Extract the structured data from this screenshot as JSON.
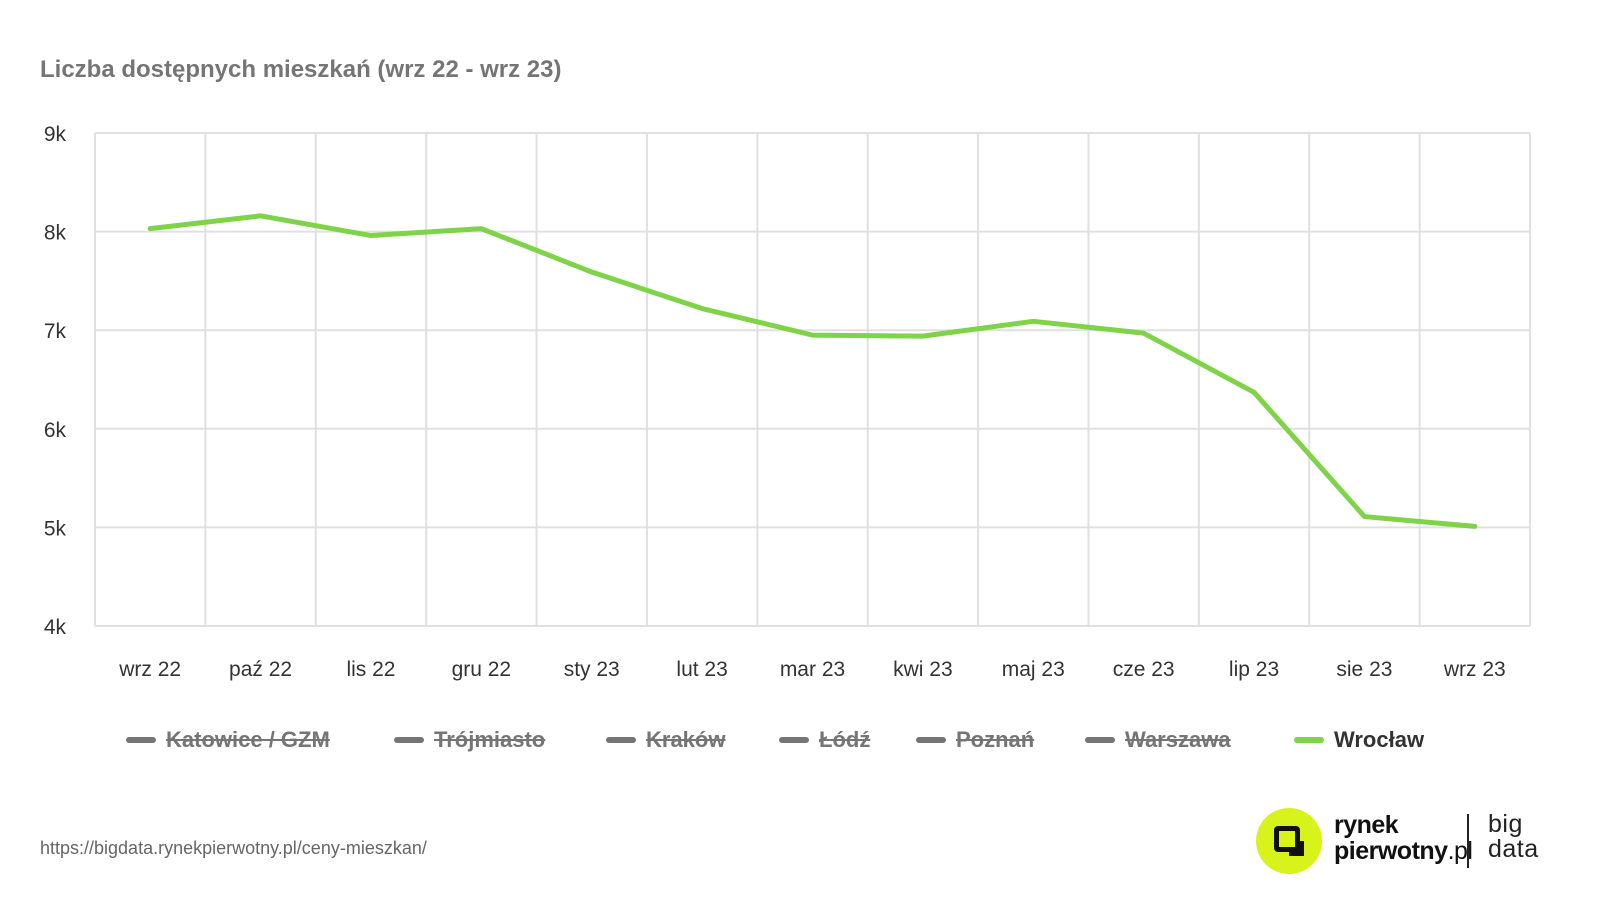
{
  "title": "Liczba dostępnych mieszkań (wrz 22 - wrz 23)",
  "chart_data": {
    "type": "line",
    "title": "Liczba dostępnych mieszkań (wrz 22 - wrz 23)",
    "categories": [
      "wrz 22",
      "paź 22",
      "lis 22",
      "gru 22",
      "sty 23",
      "lut 23",
      "mar 23",
      "kwi 23",
      "maj 23",
      "cze 23",
      "lip 23",
      "sie 23",
      "wrz 23"
    ],
    "ylim": [
      4000,
      9000
    ],
    "yticks": [
      4000,
      5000,
      6000,
      7000,
      8000,
      9000
    ],
    "ytick_labels": [
      "4k",
      "5k",
      "6k",
      "7k",
      "8k",
      "9k"
    ],
    "grid": true,
    "legend_position": "bottom",
    "series": [
      {
        "name": "Wrocław",
        "color": "#7ed348",
        "visible": true,
        "values": [
          8030,
          8160,
          7960,
          8030,
          7590,
          7220,
          6950,
          6940,
          7090,
          6970,
          6370,
          5110,
          5010
        ]
      }
    ],
    "legend": [
      {
        "name": "Katowice / GZM",
        "visible": false
      },
      {
        "name": "Trójmiasto",
        "visible": false
      },
      {
        "name": "Kraków",
        "visible": false
      },
      {
        "name": "Łódź",
        "visible": false
      },
      {
        "name": "Poznań",
        "visible": false
      },
      {
        "name": "Warszawa",
        "visible": false
      },
      {
        "name": "Wrocław",
        "visible": true,
        "color": "#7ed348"
      }
    ]
  },
  "colors": {
    "hidden_legend": "#757575",
    "grid": "#e0e0e0",
    "accent_logo": "#d8f21b"
  },
  "footer": {
    "url": "https://bigdata.rynekpierwotny.pl/ceny-mieszkan/"
  },
  "logo": {
    "line1": "rynek",
    "line2a": "pierwotny",
    "line2b": ".pl",
    "big1": "big",
    "big2": "data"
  }
}
